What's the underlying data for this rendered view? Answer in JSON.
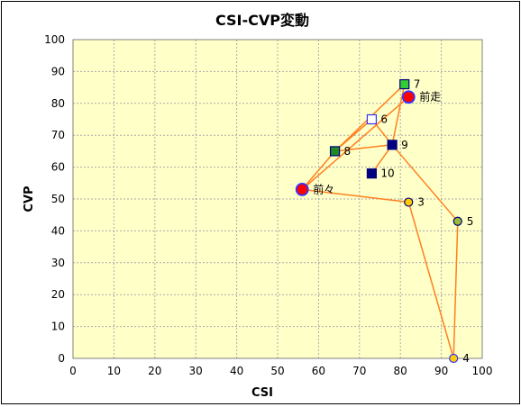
{
  "chart_data": {
    "type": "scatter",
    "title": "CSI-CVP変動",
    "xlabel": "CSI",
    "ylabel": "CVP",
    "xlim": [
      0,
      100
    ],
    "ylim": [
      0,
      100
    ],
    "x_ticks": [
      0,
      10,
      20,
      30,
      40,
      50,
      60,
      70,
      80,
      90,
      100
    ],
    "y_ticks": [
      0,
      10,
      20,
      30,
      40,
      50,
      60,
      70,
      80,
      90,
      100
    ],
    "grid": true,
    "legend": "none",
    "colors": {
      "plot_background": "#ffffc8",
      "grid": "#aaaaaa",
      "line": "#ff8020",
      "navy": "#000080",
      "red": "#ff0000",
      "blue": "#3333ff",
      "gold": "#ffcc00",
      "olive": "#99bb33",
      "green": "#33cc33",
      "dark_green": "#228822",
      "white": "#ffffff"
    },
    "points": [
      {
        "label": "前々",
        "x": 56,
        "y": 53,
        "marker": "circle",
        "size": "large",
        "fill": "red",
        "stroke": "blue"
      },
      {
        "label": "3",
        "x": 82,
        "y": 49,
        "marker": "circle",
        "size": "small",
        "fill": "gold",
        "stroke": "navy"
      },
      {
        "label": "4",
        "x": 93,
        "y": 0,
        "marker": "circle",
        "size": "small",
        "fill": "gold",
        "stroke": "blue"
      },
      {
        "label": "5",
        "x": 94,
        "y": 43,
        "marker": "circle",
        "size": "small",
        "fill": "olive",
        "stroke": "navy"
      },
      {
        "label": "6",
        "x": 73,
        "y": 75,
        "marker": "square",
        "size": "small",
        "fill": "white",
        "stroke": "blue"
      },
      {
        "label": "7",
        "x": 81,
        "y": 86,
        "marker": "square",
        "size": "small",
        "fill": "green",
        "stroke": "navy"
      },
      {
        "label": "8",
        "x": 64,
        "y": 65,
        "marker": "square",
        "size": "small",
        "fill": "dark_green",
        "stroke": "navy"
      },
      {
        "label": "9",
        "x": 78,
        "y": 67,
        "marker": "square",
        "size": "small",
        "fill": "navy",
        "stroke": "navy"
      },
      {
        "label": "10",
        "x": 73,
        "y": 58,
        "marker": "square",
        "size": "small",
        "fill": "navy",
        "stroke": "navy"
      },
      {
        "label": "前走",
        "x": 82,
        "y": 82,
        "marker": "circle",
        "size": "large",
        "fill": "red",
        "stroke": "blue"
      }
    ],
    "line_path": [
      [
        82,
        82
      ],
      [
        56,
        53
      ],
      [
        82,
        49
      ],
      [
        93,
        0
      ],
      [
        94,
        43
      ],
      [
        78,
        67
      ],
      [
        73,
        75
      ],
      [
        64,
        65
      ],
      [
        81,
        86
      ],
      [
        78,
        67
      ],
      [
        73,
        58
      ],
      [
        78,
        67
      ],
      [
        64,
        65
      ],
      [
        56,
        53
      ]
    ]
  }
}
